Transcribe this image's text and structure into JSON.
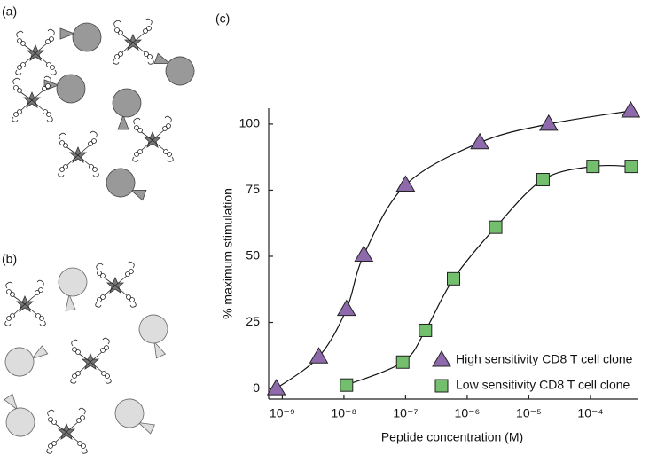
{
  "panels": [
    "(a)",
    "(b)",
    "(c)"
  ],
  "chart_data": {
    "type": "scatter",
    "x_label": "Peptide concentration (M)",
    "y_label": "% maximum stimulation",
    "log_x": true,
    "xlim": [
      6e-10,
      0.0006
    ],
    "ylim": [
      -4,
      106
    ],
    "xticks": [
      {
        "value": 1e-09,
        "label": "10⁻⁹"
      },
      {
        "value": 1e-08,
        "label": "10⁻⁸"
      },
      {
        "value": 1e-07,
        "label": "10⁻⁷"
      },
      {
        "value": 1e-06,
        "label": "10⁻⁶"
      },
      {
        "value": 1e-05,
        "label": "10⁻⁵"
      },
      {
        "value": 0.0001,
        "label": "10⁻⁴"
      }
    ],
    "yticks": [
      0,
      25,
      50,
      75,
      100
    ],
    "legend": "lower right",
    "series": [
      {
        "name": "High sensitivity CD8 T cell clone",
        "color": "#8e6aac",
        "marker": "triangle",
        "x": [
          8e-10,
          3.9e-09,
          1.1e-08,
          2.1e-08,
          1e-07,
          1.6e-06,
          2.1e-05,
          0.00045
        ],
        "values": [
          0,
          12,
          30,
          50.5,
          77,
          93,
          100,
          105
        ]
      },
      {
        "name": "Low sensitivity CD8 T cell clone",
        "color": "#73bf6e",
        "marker": "square",
        "x": [
          1.1e-08,
          9e-08,
          2.1e-07,
          6e-07,
          2.9e-06,
          1.7e-05,
          0.00011,
          0.00046
        ],
        "values": [
          1.3,
          10,
          22,
          41.5,
          61,
          79,
          84,
          84
        ]
      }
    ]
  }
}
